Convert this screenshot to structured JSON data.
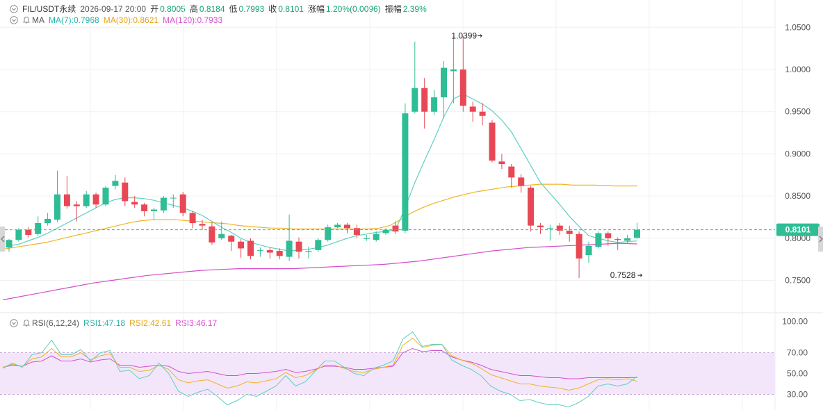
{
  "header": {
    "symbol": "FIL/USDT永续",
    "datetime": "2026-09-17 20:00",
    "open_label": "开",
    "open": "0.8005",
    "high_label": "高",
    "high": "0.8184",
    "low_label": "低",
    "low": "0.7993",
    "close_label": "收",
    "close": "0.8101",
    "change_label": "涨幅",
    "change": "1.20%(0.0096)",
    "amplitude_label": "振幅",
    "amplitude": "2.39%"
  },
  "ma_legend": {
    "label": "MA",
    "ma7": "MA(7):0.7968",
    "ma30": "MA(30):0.8621",
    "ma120": "MA(120):0.7933"
  },
  "rsi_legend": {
    "label": "RSI(6,12,24)",
    "rsi1": "RSI1:47.18",
    "rsi2": "RSI2:42.61",
    "rsi3": "RSI3:46.17"
  },
  "colors": {
    "up": "#2ebd95",
    "down": "#e84855",
    "ma7": "#5dd0c0",
    "ma30": "#f0b323",
    "ma120": "#d44fcc",
    "rsi_band": "#f3e6fb",
    "last_price_line": "#2ebd95"
  },
  "chart_data": [
    {
      "type": "candlestick",
      "ylim": [
        0.72,
        1.07
      ],
      "ticks": [
        "1.0500",
        "1.0000",
        "0.9500",
        "0.9000",
        "0.8500",
        "0.8000",
        "0.7500"
      ],
      "tick_values": [
        1.05,
        1.0,
        0.95,
        0.9,
        0.85,
        0.8,
        0.75
      ],
      "last_price": 0.8101,
      "last_price_label": "0.8101",
      "high_marker": {
        "value": 1.0399,
        "label": "1.0399",
        "index": 49
      },
      "low_marker": {
        "value": 0.7528,
        "label": "0.7528",
        "index": 66
      },
      "candles": [
        [
          0.789,
          0.798,
          0.799,
          0.784
        ],
        [
          0.798,
          0.81,
          0.812,
          0.796
        ],
        [
          0.81,
          0.804,
          0.813,
          0.801
        ],
        [
          0.805,
          0.818,
          0.826,
          0.803
        ],
        [
          0.818,
          0.823,
          0.83,
          0.815
        ],
        [
          0.822,
          0.852,
          0.88,
          0.819
        ],
        [
          0.852,
          0.838,
          0.874,
          0.835
        ],
        [
          0.84,
          0.838,
          0.844,
          0.82
        ],
        [
          0.838,
          0.852,
          0.856,
          0.836
        ],
        [
          0.852,
          0.84,
          0.854,
          0.836
        ],
        [
          0.84,
          0.86,
          0.862,
          0.838
        ],
        [
          0.862,
          0.868,
          0.875,
          0.858
        ],
        [
          0.866,
          0.844,
          0.872,
          0.838
        ],
        [
          0.843,
          0.84,
          0.85,
          0.836
        ],
        [
          0.84,
          0.832,
          0.842,
          0.826
        ],
        [
          0.832,
          0.834,
          0.836,
          0.822
        ],
        [
          0.833,
          0.848,
          0.85,
          0.83
        ],
        [
          0.848,
          0.848,
          0.852,
          0.836
        ],
        [
          0.852,
          0.83,
          0.855,
          0.826
        ],
        [
          0.83,
          0.818,
          0.832,
          0.812
        ],
        [
          0.817,
          0.815,
          0.822,
          0.81
        ],
        [
          0.814,
          0.795,
          0.819,
          0.792
        ],
        [
          0.8,
          0.805,
          0.82,
          0.798
        ],
        [
          0.803,
          0.796,
          0.804,
          0.785
        ],
        [
          0.796,
          0.788,
          0.799,
          0.777
        ],
        [
          0.797,
          0.779,
          0.8,
          0.775
        ],
        [
          0.786,
          0.786,
          0.789,
          0.778
        ],
        [
          0.786,
          0.783,
          0.789,
          0.776
        ],
        [
          0.785,
          0.779,
          0.788,
          0.775
        ],
        [
          0.778,
          0.797,
          0.828,
          0.773
        ],
        [
          0.796,
          0.784,
          0.801,
          0.776
        ],
        [
          0.784,
          0.785,
          0.79,
          0.776
        ],
        [
          0.786,
          0.798,
          0.8,
          0.784
        ],
        [
          0.798,
          0.813,
          0.816,
          0.796
        ],
        [
          0.813,
          0.816,
          0.818,
          0.812
        ],
        [
          0.816,
          0.812,
          0.818,
          0.806
        ],
        [
          0.812,
          0.804,
          0.816,
          0.8
        ],
        [
          0.8,
          0.8,
          0.804,
          0.797
        ],
        [
          0.798,
          0.805,
          0.808,
          0.796
        ],
        [
          0.806,
          0.81,
          0.812,
          0.804
        ],
        [
          0.815,
          0.808,
          0.82,
          0.805
        ],
        [
          0.809,
          0.948,
          0.96,
          0.806
        ],
        [
          0.95,
          0.978,
          1.033,
          0.948
        ],
        [
          0.978,
          0.95,
          0.99,
          0.93
        ],
        [
          0.95,
          0.967,
          0.976,
          0.946
        ],
        [
          0.967,
          1.002,
          1.01,
          0.942
        ],
        [
          0.998,
          1.0,
          1.038,
          0.96
        ],
        [
          1.0,
          0.957,
          1.04,
          0.95
        ],
        [
          0.956,
          0.95,
          0.962,
          0.938
        ],
        [
          0.95,
          0.945,
          0.96,
          0.934
        ],
        [
          0.937,
          0.892,
          0.94,
          0.89
        ],
        [
          0.891,
          0.888,
          0.9,
          0.882
        ],
        [
          0.885,
          0.872,
          0.888,
          0.86
        ],
        [
          0.872,
          0.862,
          0.876,
          0.854
        ],
        [
          0.86,
          0.815,
          0.862,
          0.808
        ],
        [
          0.815,
          0.813,
          0.818,
          0.805
        ],
        [
          0.812,
          0.812,
          0.816,
          0.797
        ],
        [
          0.815,
          0.809,
          0.818,
          0.804
        ],
        [
          0.809,
          0.805,
          0.815,
          0.796
        ],
        [
          0.805,
          0.776,
          0.808,
          0.753
        ],
        [
          0.78,
          0.791,
          0.796,
          0.771
        ],
        [
          0.79,
          0.806,
          0.808,
          0.788
        ],
        [
          0.806,
          0.8,
          0.808,
          0.791
        ],
        [
          0.799,
          0.798,
          0.801,
          0.786
        ],
        [
          0.797,
          0.8,
          0.804,
          0.794
        ],
        [
          0.8005,
          0.8101,
          0.8184,
          0.7993
        ]
      ],
      "ma7": [
        0.791,
        0.793,
        0.797,
        0.801,
        0.806,
        0.812,
        0.818,
        0.824,
        0.83,
        0.836,
        0.842,
        0.846,
        0.848,
        0.848,
        0.847,
        0.845,
        0.842,
        0.839,
        0.836,
        0.832,
        0.827,
        0.82,
        0.813,
        0.807,
        0.8,
        0.795,
        0.792,
        0.789,
        0.787,
        0.785,
        0.786,
        0.787,
        0.789,
        0.792,
        0.796,
        0.8,
        0.803,
        0.805,
        0.807,
        0.808,
        0.81,
        0.836,
        0.866,
        0.892,
        0.917,
        0.944,
        0.965,
        0.971,
        0.965,
        0.959,
        0.951,
        0.94,
        0.926,
        0.906,
        0.886,
        0.866,
        0.853,
        0.84,
        0.826,
        0.814,
        0.803,
        0.8,
        0.797,
        0.795,
        0.796,
        0.7968
      ],
      "ma30": [
        0.787,
        0.789,
        0.791,
        0.793,
        0.795,
        0.798,
        0.801,
        0.804,
        0.807,
        0.81,
        0.813,
        0.816,
        0.819,
        0.821,
        0.822,
        0.822,
        0.822,
        0.821,
        0.82,
        0.819,
        0.818,
        0.817,
        0.815,
        0.814,
        0.813,
        0.812,
        0.812,
        0.811,
        0.811,
        0.811,
        0.811,
        0.811,
        0.811,
        0.811,
        0.811,
        0.812,
        0.815,
        0.822,
        0.83,
        0.836,
        0.841,
        0.845,
        0.849,
        0.852,
        0.855,
        0.857,
        0.859,
        0.861,
        0.862,
        0.863,
        0.864,
        0.864,
        0.864,
        0.863,
        0.863,
        0.863,
        0.8625,
        0.862,
        0.862,
        0.8621
      ],
      "ma120": [
        0.727,
        0.731,
        0.735,
        0.739,
        0.743,
        0.747,
        0.75,
        0.753,
        0.756,
        0.758,
        0.76,
        0.762,
        0.763,
        0.764,
        0.764,
        0.764,
        0.764,
        0.765,
        0.766,
        0.767,
        0.768,
        0.769,
        0.771,
        0.773,
        0.776,
        0.779,
        0.782,
        0.785,
        0.787,
        0.789,
        0.79,
        0.791,
        0.792,
        0.793,
        0.794,
        0.7933
      ]
    },
    {
      "type": "line",
      "ylim": [
        25,
        105
      ],
      "ticks": [
        "100.00",
        "70.00",
        "50.00",
        "30.00"
      ],
      "tick_values": [
        100,
        70,
        50,
        30
      ],
      "band": [
        30,
        70
      ],
      "rsi1": [
        55,
        60,
        56,
        68,
        70,
        82,
        68,
        68,
        73,
        62,
        70,
        72,
        52,
        53,
        45,
        48,
        60,
        50,
        33,
        28,
        32,
        35,
        28,
        20,
        24,
        30,
        28,
        33,
        38,
        48,
        38,
        42,
        52,
        62,
        62,
        56,
        50,
        48,
        55,
        58,
        62,
        83,
        90,
        76,
        78,
        78,
        63,
        58,
        54,
        48,
        38,
        33,
        30,
        24,
        25,
        22,
        20,
        20,
        18,
        22,
        28,
        38,
        40,
        38,
        40,
        47.18
      ],
      "rsi2": [
        56,
        59,
        57,
        64,
        66,
        74,
        66,
        66,
        70,
        63,
        67,
        69,
        56,
        56,
        52,
        53,
        58,
        54,
        44,
        41,
        43,
        44,
        40,
        36,
        38,
        42,
        41,
        43,
        45,
        51,
        46,
        48,
        53,
        58,
        58,
        55,
        52,
        51,
        54,
        56,
        58,
        77,
        84,
        75,
        77,
        78,
        67,
        63,
        60,
        55,
        49,
        46,
        43,
        40,
        40,
        38,
        37,
        36,
        34,
        36,
        40,
        44,
        45,
        44,
        45,
        42.61
      ],
      "rsi3": [
        56,
        58,
        57,
        61,
        62,
        67,
        62,
        62,
        64,
        61,
        63,
        64,
        58,
        58,
        56,
        57,
        58,
        57,
        52,
        50,
        51,
        52,
        50,
        48,
        48,
        50,
        50,
        51,
        52,
        54,
        51,
        52,
        54,
        57,
        57,
        56,
        54,
        54,
        55,
        56,
        57,
        70,
        74,
        71,
        72,
        72,
        66,
        63,
        61,
        58,
        54,
        52,
        50,
        48,
        48,
        47,
        46,
        46,
        45,
        45,
        46,
        46,
        46,
        46,
        46,
        46.17
      ]
    }
  ]
}
